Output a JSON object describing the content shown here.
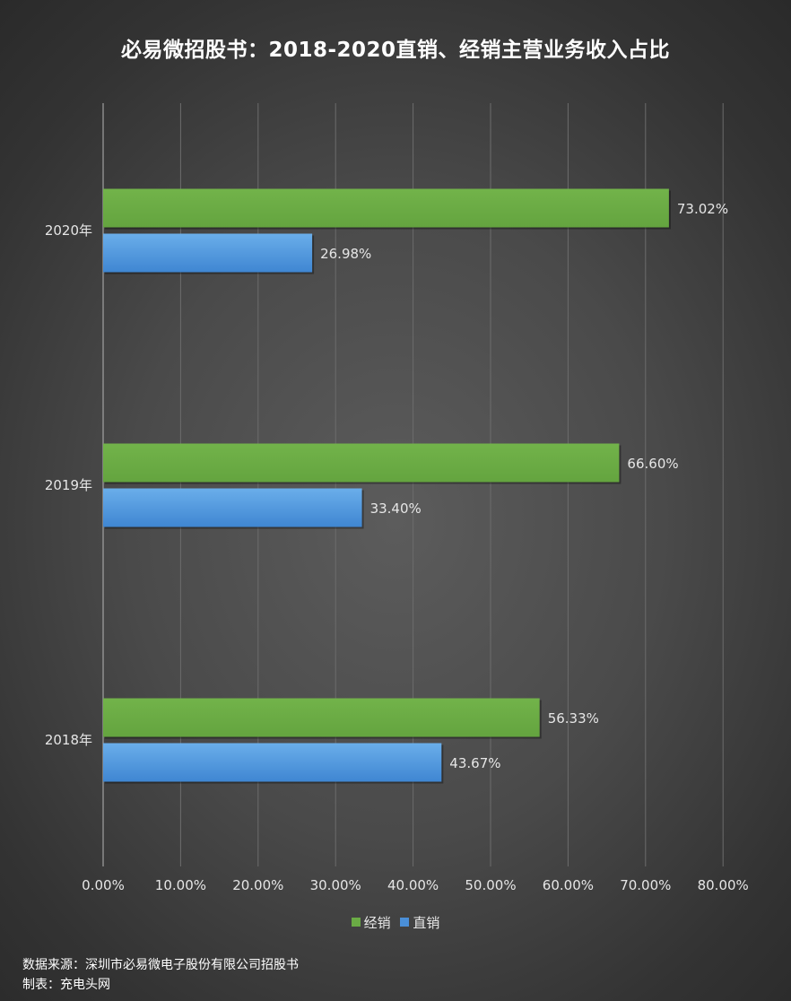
{
  "colors": {
    "series_1": "#6aab45",
    "series_2": "#4a8fd8",
    "grid": "#6c6c6c",
    "axis": "#b5b5b5",
    "label": "#e6e6e6"
  },
  "chart_data": {
    "type": "bar",
    "orientation": "horizontal",
    "title": "必易微招股书：2018-2020直销、经销主营业务收入占比",
    "categories": [
      "2020年",
      "2019年",
      "2018年"
    ],
    "series": [
      {
        "name": "经销",
        "values": [
          73.02,
          66.6,
          56.33
        ],
        "labels": [
          "73.02%",
          "66.60%",
          "56.33%"
        ]
      },
      {
        "name": "直销",
        "values": [
          26.98,
          33.4,
          43.67
        ],
        "labels": [
          "26.98%",
          "33.40%",
          "43.67%"
        ]
      }
    ],
    "xlim": [
      0,
      80
    ],
    "xticks": [
      0,
      10,
      20,
      30,
      40,
      50,
      60,
      70,
      80
    ],
    "xtick_labels": [
      "0.00%",
      "10.00%",
      "20.00%",
      "30.00%",
      "40.00%",
      "50.00%",
      "60.00%",
      "70.00%",
      "80.00%"
    ],
    "grid": true,
    "legend_position": "bottom"
  },
  "footer": {
    "source": "数据来源：深圳市必易微电子股份有限公司招股书",
    "maker": "制表：充电头网"
  }
}
